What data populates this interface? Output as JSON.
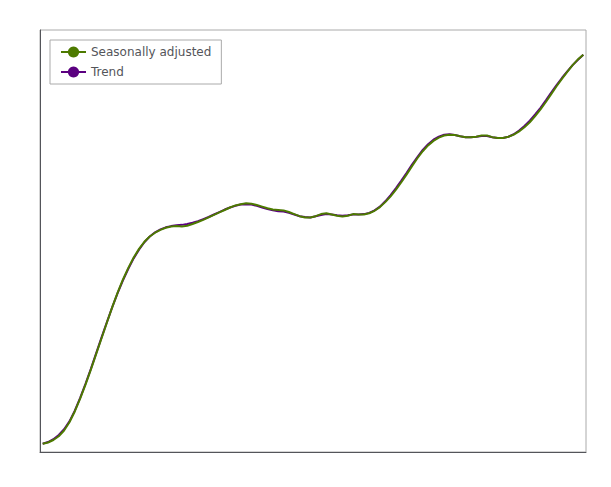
{
  "chart_data": {
    "type": "line",
    "x": [
      0,
      1,
      2,
      3,
      4,
      5,
      6,
      7,
      8,
      9,
      10,
      11,
      12,
      13,
      14,
      15,
      16,
      17,
      18,
      19,
      20,
      21,
      22,
      23,
      24,
      25,
      26,
      27,
      28,
      29,
      30,
      31,
      32,
      33,
      34,
      35,
      36,
      37,
      38,
      39,
      40,
      41,
      42,
      43,
      44,
      45,
      46,
      47,
      48,
      49,
      50,
      51,
      52,
      53,
      54,
      55,
      56,
      57,
      58,
      59,
      60,
      61,
      62,
      63,
      64,
      65,
      66,
      67,
      68,
      69,
      70,
      71,
      72,
      73,
      74,
      75,
      76,
      77,
      78,
      79,
      80,
      81,
      82,
      83,
      84,
      85,
      86,
      87,
      88,
      89,
      90,
      91,
      92,
      93,
      94,
      95,
      96,
      97,
      98,
      99,
      100,
      101
    ],
    "series": [
      {
        "name": "Seasonally adjusted",
        "color": "#4d7a00",
        "values": [
          0.0,
          0.3,
          0.9,
          1.8,
          3.2,
          5.2,
          7.8,
          10.9,
          14.3,
          17.9,
          21.7,
          25.5,
          29.3,
          33.0,
          36.5,
          39.7,
          42.5,
          45.0,
          47.1,
          48.8,
          50.1,
          51.0,
          51.7,
          52.2,
          52.5,
          52.6,
          52.5,
          52.7,
          53.1,
          53.6,
          54.1,
          54.7,
          55.3,
          55.9,
          56.5,
          57.1,
          57.6,
          57.9,
          58.1,
          58.0,
          57.7,
          57.3,
          56.9,
          56.6,
          56.5,
          56.4,
          56.0,
          55.5,
          55.0,
          54.7,
          54.7,
          55.0,
          55.5,
          55.7,
          55.4,
          55.1,
          54.9,
          55.1,
          55.5,
          55.4,
          55.4,
          55.7,
          56.3,
          57.2,
          58.4,
          59.8,
          61.4,
          63.2,
          65.1,
          67.1,
          69.0,
          70.7,
          72.1,
          73.2,
          74.0,
          74.5,
          74.7,
          74.6,
          74.3,
          74.1,
          74.1,
          74.2,
          74.5,
          74.5,
          74.1,
          73.9,
          73.9,
          74.2,
          74.7,
          75.5,
          76.5,
          77.7,
          79.2,
          80.8,
          82.6,
          84.5,
          86.4,
          88.2,
          89.9,
          91.5,
          92.9,
          94.0
        ]
      },
      {
        "name": "Trend",
        "color": "#5b0080",
        "values": [
          0.0,
          0.4,
          1.1,
          2.1,
          3.5,
          5.4,
          8.0,
          11.1,
          14.5,
          18.1,
          21.9,
          25.7,
          29.4,
          33.0,
          36.4,
          39.5,
          42.3,
          44.8,
          46.9,
          48.7,
          50.1,
          51.1,
          51.8,
          52.3,
          52.6,
          52.8,
          52.9,
          53.1,
          53.4,
          53.8,
          54.3,
          54.8,
          55.4,
          56.0,
          56.6,
          57.1,
          57.5,
          57.8,
          57.9,
          57.8,
          57.5,
          57.1,
          56.7,
          56.4,
          56.2,
          56.1,
          55.8,
          55.4,
          55.0,
          54.8,
          54.7,
          55.0,
          55.3,
          55.5,
          55.4,
          55.2,
          55.1,
          55.2,
          55.4,
          55.4,
          55.5,
          55.8,
          56.4,
          57.3,
          58.6,
          60.1,
          61.8,
          63.6,
          65.5,
          67.5,
          69.3,
          71.0,
          72.4,
          73.5,
          74.2,
          74.7,
          74.8,
          74.6,
          74.3,
          74.1,
          74.1,
          74.2,
          74.4,
          74.4,
          74.1,
          73.9,
          73.9,
          74.2,
          74.8,
          75.7,
          76.8,
          78.1,
          79.6,
          81.2,
          83.0,
          84.9,
          86.7,
          88.4,
          90.0,
          91.5,
          92.8,
          94.0
        ]
      }
    ],
    "xlim": [
      -0.5,
      101.5
    ],
    "ylim": [
      -2,
      100
    ],
    "xticks": [],
    "yticks": [],
    "grid": false,
    "legend": "upper left",
    "tick_labels": false
  }
}
